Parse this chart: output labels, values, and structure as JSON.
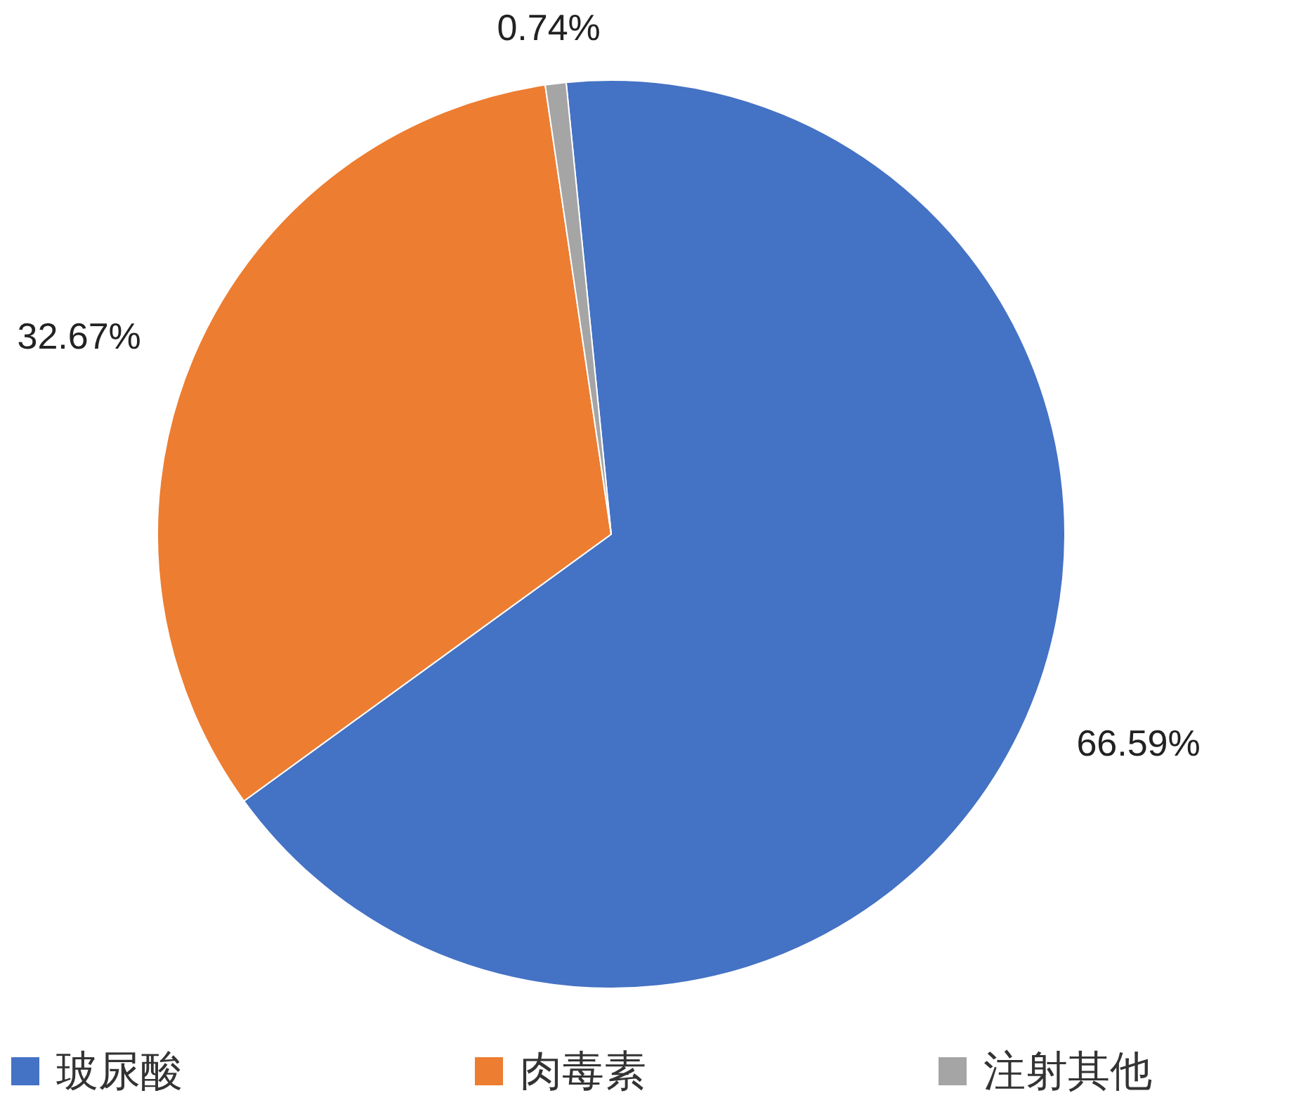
{
  "chart_data": {
    "type": "pie",
    "categories": [
      "玻尿酸",
      "肉毒素",
      "注射其他"
    ],
    "values": [
      66.59,
      32.67,
      0.74
    ],
    "value_labels": [
      "66.59%",
      "32.67%",
      "0.74%"
    ],
    "colors": [
      "#4472c4",
      "#ed7d31",
      "#a5a5a5"
    ],
    "legend": "bottom"
  }
}
